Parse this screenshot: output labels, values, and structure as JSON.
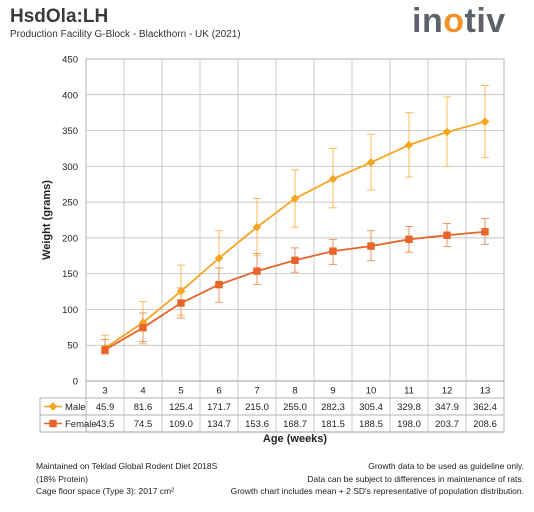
{
  "header": {
    "title": "HsdOla:LH",
    "subtitle": "Production Facility G-Block - Blackthorn - UK (2021)",
    "logo_prefix": "in",
    "logo_o": "o",
    "logo_suffix": "tiv"
  },
  "chart_data": {
    "type": "line",
    "xlabel": "Age (weeks)",
    "ylabel": "Weight (grams)",
    "ylim": [
      0,
      450
    ],
    "yticks": [
      0,
      50,
      100,
      150,
      200,
      250,
      300,
      350,
      400,
      450
    ],
    "categories": [
      "3",
      "4",
      "5",
      "6",
      "7",
      "8",
      "9",
      "10",
      "11",
      "12",
      "13"
    ],
    "grid": true,
    "series": [
      {
        "name": "Male",
        "color": "#f5a623",
        "marker": "diamond",
        "values": [
          45.9,
          81.6,
          125.4,
          171.7,
          215.0,
          255.0,
          282.3,
          305.4,
          329.8,
          347.9,
          362.4
        ],
        "labels": [
          "45.9",
          "81.6",
          "125.4",
          "171.7",
          "215.0",
          "255.0",
          "282.3",
          "305.4",
          "329.8",
          "347.9",
          "362.4"
        ],
        "error_low": [
          38,
          52,
          92,
          135,
          175,
          215,
          242,
          267,
          285,
          300,
          312
        ],
        "error_high": [
          64,
          111,
          162,
          210,
          255,
          295,
          325,
          345,
          375,
          397,
          413
        ]
      },
      {
        "name": "Female",
        "color": "#e8642a",
        "marker": "square",
        "values": [
          43.5,
          74.5,
          109.0,
          134.7,
          153.6,
          168.7,
          181.5,
          188.5,
          198.0,
          203.7,
          208.6
        ],
        "labels": [
          "43.5",
          "74.5",
          "109.0",
          "134.7",
          "153.6",
          "168.7",
          "181.5",
          "188.5",
          "198.0",
          "203.7",
          "208.6"
        ],
        "error_low": [
          38,
          55,
          88,
          110,
          135,
          152,
          163,
          168,
          180,
          188,
          191
        ],
        "error_high": [
          58,
          95,
          130,
          158,
          178,
          186,
          198,
          210,
          216,
          220,
          227
        ]
      }
    ]
  },
  "footer": {
    "left": [
      "Maintained on Teklad Global Rodent Diet 2018S",
      "(18% Protein)",
      "Cage floor space (Type 3): 2017 cm²"
    ],
    "right": [
      "Growth data to be used as guideline only.",
      "Data can be subject to differences in maintenance of rats.",
      "Growth chart includes mean + 2 SD's representative of population distribution."
    ]
  }
}
